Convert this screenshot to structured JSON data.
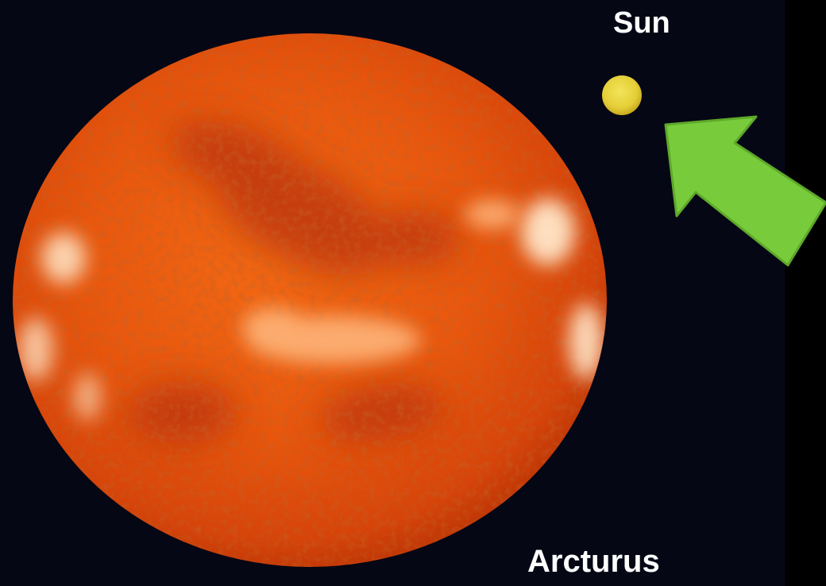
{
  "labels": {
    "sun": "Sun",
    "arcturus": "Arcturus"
  },
  "objects": {
    "arcturus": {
      "name": "arcturus-star",
      "color": "#e8560d"
    },
    "sun": {
      "name": "sun-star",
      "color": "#e8d43a"
    },
    "pointer": {
      "name": "arrow-icon",
      "color": "#78cc3c"
    }
  },
  "colors": {
    "background": "#050714",
    "frame": "#000000",
    "text": "#ffffff"
  }
}
